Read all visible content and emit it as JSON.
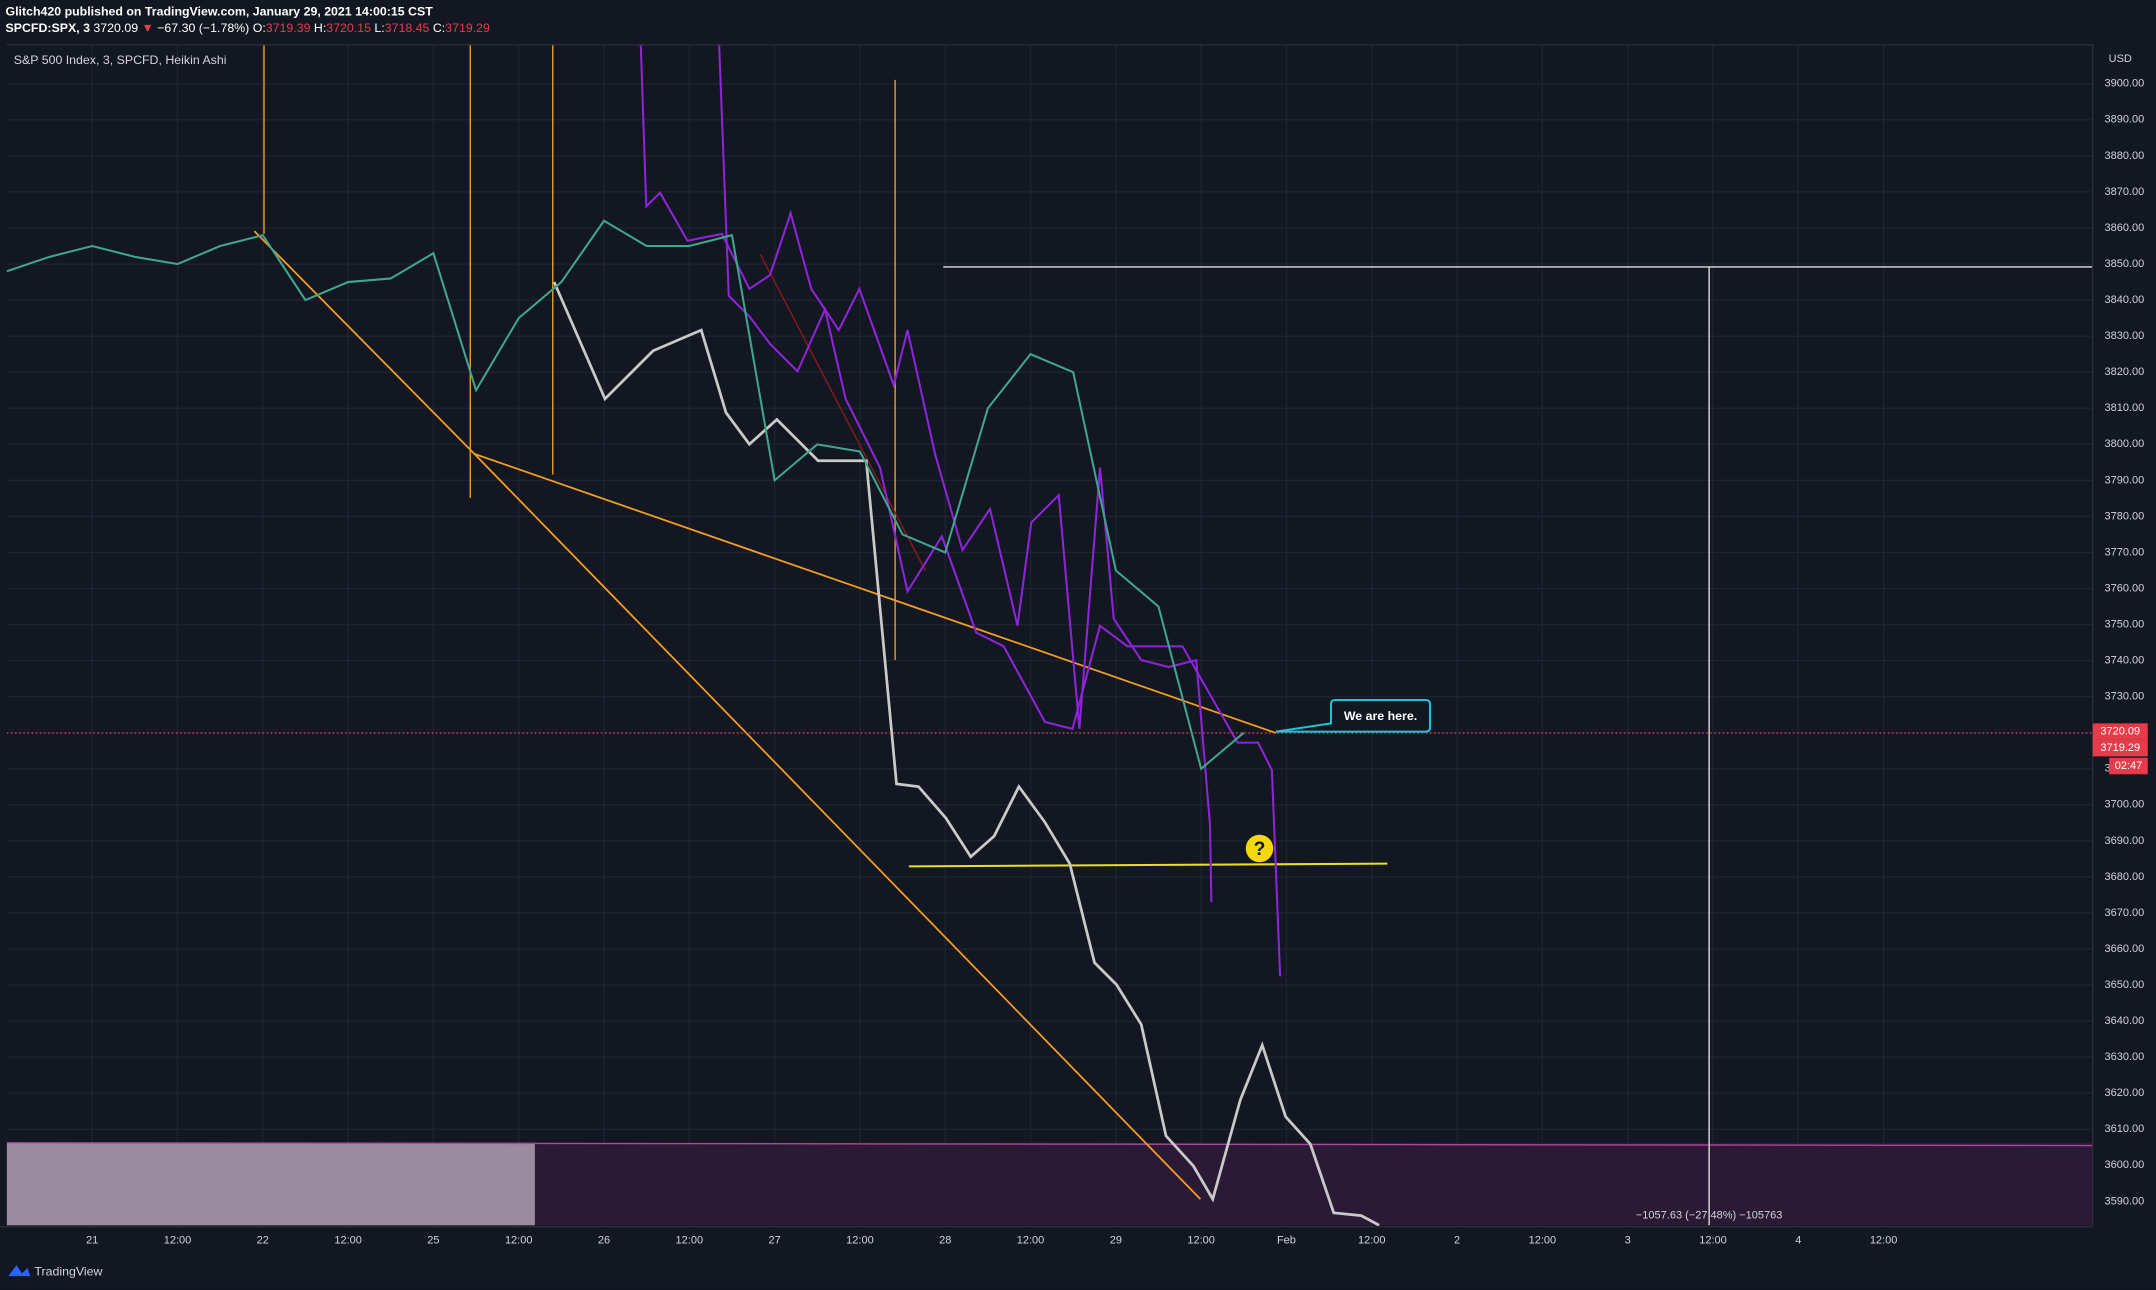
{
  "header": {
    "publisher": "Glitch420 published on TradingView.com, January 29, 2021 14:00:15 CST",
    "symbol": "SPCFD:SPX, 3",
    "last": "3720.09",
    "change": "−67.30 (−1.78%)",
    "open_label": "O:",
    "open": "3719.39",
    "high_label": "H:",
    "high": "3720.15",
    "low_label": "L:",
    "low": "3718.45",
    "close_label": "C:",
    "close": "3719.29",
    "brand": "TradingView"
  },
  "annotations": {
    "callout": "We are here.",
    "question": "?",
    "measure": "−1057.63 (−27.48%) −105763",
    "currency": "USD",
    "price_tag_1": "3720.09",
    "price_tag_2": "3719.29",
    "countdown": "02:47"
  },
  "chart_data": {
    "type": "line",
    "title": "S&P 500 Index, 3, SPCFD, Heikin Ashi",
    "categories": [
      null,
      null,
      "21",
      null,
      "12:00",
      null,
      "22",
      null,
      "12:00",
      null,
      "25",
      null,
      "12:00",
      null,
      "26",
      null,
      "12:00",
      null,
      "27",
      null,
      "12:00",
      null,
      "28",
      null,
      "12:00",
      null,
      "29",
      null,
      "12:00",
      null,
      "Feb",
      null,
      "12:00",
      null,
      "2",
      null,
      "12:00",
      null,
      "3",
      null,
      "12:00",
      null,
      "4",
      null,
      "12:00",
      null,
      null,
      null,
      null
    ],
    "series": [
      {
        "name": "SPX",
        "color": "#3fa58d",
        "values": [
          3848,
          3852,
          3855,
          3852,
          3850,
          3855,
          3858,
          3840,
          3845,
          3846,
          3853,
          3815,
          3835,
          3845,
          3862,
          3855,
          3855,
          3858,
          3790,
          3800,
          3798,
          3775,
          3770,
          3810,
          3825,
          3820,
          3765,
          3755,
          3710,
          3720,
          null,
          null,
          null,
          null,
          null,
          null,
          null,
          null,
          null,
          null,
          null,
          null,
          null,
          null,
          null,
          null,
          null,
          null,
          null
        ]
      }
    ],
    "ylim": [
      3583,
      3911
    ],
    "yticks": [
      {
        "value": 3590,
        "label": "3590.00"
      },
      {
        "value": 3600,
        "label": "3600.00"
      },
      {
        "value": 3610,
        "label": "3610.00"
      },
      {
        "value": 3620,
        "label": "3620.00"
      },
      {
        "value": 3630,
        "label": "3630.00"
      },
      {
        "value": 3640,
        "label": "3640.00"
      },
      {
        "value": 3650,
        "label": "3650.00"
      },
      {
        "value": 3660,
        "label": "3660.00"
      },
      {
        "value": 3670,
        "label": "3670.00"
      },
      {
        "value": 3680,
        "label": "3680.00"
      },
      {
        "value": 3690,
        "label": "3690.00"
      },
      {
        "value": 3700,
        "label": "3700.00"
      },
      {
        "value": 3710,
        "label": "3710.00"
      },
      {
        "value": 3720,
        "label": "3720.00"
      },
      {
        "value": 3730,
        "label": "3730.00"
      },
      {
        "value": 3740,
        "label": "3740.00"
      },
      {
        "value": 3750,
        "label": "3750.00"
      },
      {
        "value": 3760,
        "label": "3760.00"
      },
      {
        "value": 3770,
        "label": "3770.00"
      },
      {
        "value": 3780,
        "label": "3780.00"
      },
      {
        "value": 3790,
        "label": "3790.00"
      },
      {
        "value": 3800,
        "label": "3800.00"
      },
      {
        "value": 3810,
        "label": "3810.00"
      },
      {
        "value": 3820,
        "label": "3820.00"
      },
      {
        "value": 3830,
        "label": "3830.00"
      },
      {
        "value": 3840,
        "label": "3840.00"
      },
      {
        "value": 3850,
        "label": "3850.00"
      },
      {
        "value": 3860,
        "label": "3860.00"
      },
      {
        "value": 3870,
        "label": "3870.00"
      },
      {
        "value": 3880,
        "label": "3880.00"
      },
      {
        "value": 3890,
        "label": "3890.00"
      },
      {
        "value": 3900,
        "label": "3900.00"
      }
    ],
    "grid": true
  }
}
